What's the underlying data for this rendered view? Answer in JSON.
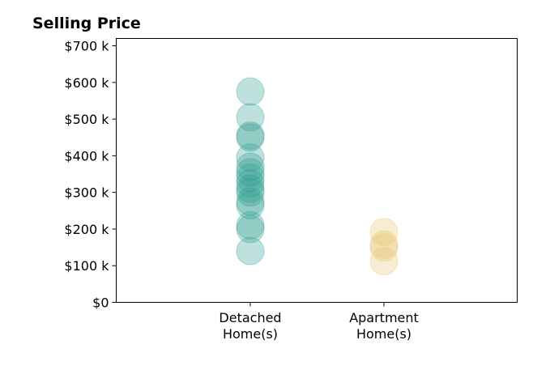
{
  "chart_data": {
    "type": "scatter",
    "title": "Selling Price",
    "categories": [
      "Detached\nHome(s)",
      "Apartment\nHome(s)"
    ],
    "ylim": [
      0,
      720000
    ],
    "yticks": [
      0,
      100000,
      200000,
      300000,
      400000,
      500000,
      600000,
      700000
    ],
    "ytick_labels": [
      "$0",
      "$100 k",
      "$200 k",
      "$300 k",
      "$400 k",
      "$500 k",
      "$600 k",
      "$700 k"
    ],
    "series": [
      {
        "category": "Detached\nHome(s)",
        "color": "#2a9d8f",
        "values": [
          575000,
          505000,
          455000,
          450000,
          395000,
          370000,
          355000,
          340000,
          325000,
          310000,
          300000,
          275000,
          265000,
          210000,
          200000,
          140000
        ]
      },
      {
        "category": "Apartment\nHome(s)",
        "color": "#e9c46a",
        "values": [
          192000,
          158000,
          150000,
          112000
        ]
      }
    ],
    "grid": false
  }
}
